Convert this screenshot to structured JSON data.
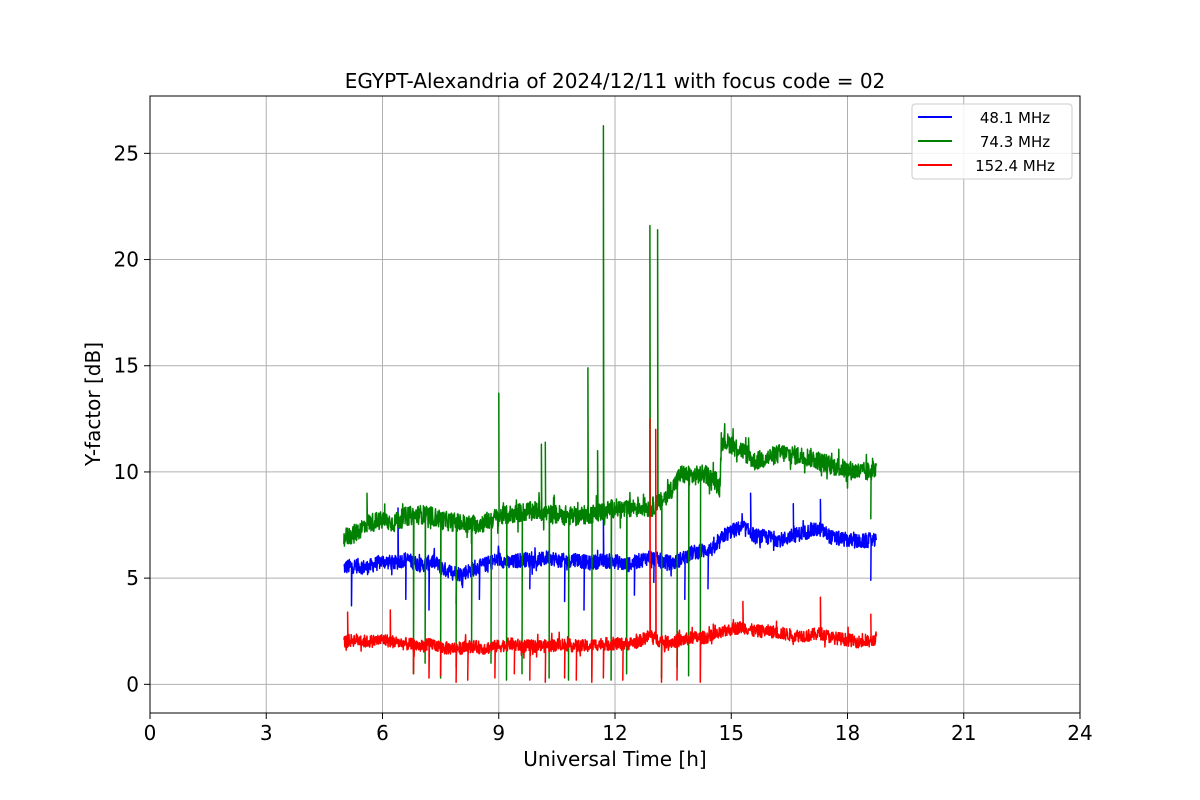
{
  "chart_data": {
    "type": "line",
    "title": "EGYPT-Alexandria of 2024/12/11 with focus code = 02",
    "xlabel": "Universal Time [h]",
    "ylabel": "Y-factor [dB]",
    "xlim": [
      0,
      24
    ],
    "ylim": [
      -1.35,
      27.7
    ],
    "xticks": [
      0,
      3,
      6,
      9,
      12,
      15,
      18,
      21,
      24
    ],
    "xtick_labels": [
      "0",
      "3",
      "6",
      "9",
      "12",
      "15",
      "18",
      "21",
      "24"
    ],
    "yticks": [
      0,
      5,
      10,
      15,
      20,
      25
    ],
    "ytick_labels": [
      "0",
      "5",
      "10",
      "15",
      "20",
      "25"
    ],
    "grid": true,
    "legend_position": "top-right",
    "series": [
      {
        "name": "48.1 MHz",
        "color": "#0000ff",
        "segments": [
          [
            5.0,
            5.5
          ],
          [
            5.3,
            5.6
          ],
          [
            5.6,
            5.5
          ],
          [
            6.0,
            5.8
          ],
          [
            6.3,
            5.7
          ],
          [
            6.6,
            5.9
          ],
          [
            7.0,
            5.6
          ],
          [
            7.3,
            5.8
          ],
          [
            7.6,
            5.4
          ],
          [
            8.0,
            5.2
          ],
          [
            8.3,
            5.4
          ],
          [
            8.6,
            5.6
          ],
          [
            9.0,
            5.9
          ],
          [
            9.3,
            5.7
          ],
          [
            9.6,
            5.9
          ],
          [
            10.0,
            5.8
          ],
          [
            10.3,
            6.0
          ],
          [
            10.6,
            5.8
          ],
          [
            11.0,
            5.9
          ],
          [
            11.3,
            5.7
          ],
          [
            11.6,
            5.8
          ],
          [
            12.0,
            5.8
          ],
          [
            12.3,
            5.6
          ],
          [
            12.6,
            5.8
          ],
          [
            12.9,
            6.0
          ],
          [
            13.2,
            5.8
          ],
          [
            13.5,
            5.7
          ],
          [
            13.8,
            6.0
          ],
          [
            14.0,
            6.2
          ],
          [
            14.3,
            6.3
          ],
          [
            14.6,
            6.4
          ],
          [
            14.8,
            7.0
          ],
          [
            15.0,
            7.2
          ],
          [
            15.3,
            7.4
          ],
          [
            15.6,
            7.0
          ],
          [
            16.0,
            6.9
          ],
          [
            16.3,
            6.8
          ],
          [
            16.6,
            7.0
          ],
          [
            17.0,
            7.2
          ],
          [
            17.3,
            7.3
          ],
          [
            17.6,
            6.9
          ],
          [
            18.0,
            6.8
          ],
          [
            18.3,
            6.7
          ],
          [
            18.6,
            6.8
          ],
          [
            18.75,
            6.7
          ]
        ],
        "spikes": [
          [
            5.2,
            3.7
          ],
          [
            6.4,
            8.3
          ],
          [
            6.6,
            4.0
          ],
          [
            7.2,
            3.5
          ],
          [
            7.9,
            3.8
          ],
          [
            8.5,
            4.0
          ],
          [
            9.8,
            4.5
          ],
          [
            10.7,
            3.9
          ],
          [
            11.2,
            3.5
          ],
          [
            11.7,
            7.9
          ],
          [
            12.5,
            4.2
          ],
          [
            13.0,
            4.8
          ],
          [
            13.8,
            4.0
          ],
          [
            14.4,
            4.5
          ],
          [
            15.5,
            9.0
          ],
          [
            16.6,
            8.5
          ],
          [
            17.3,
            8.7
          ],
          [
            18.6,
            4.9
          ]
        ],
        "noise": 0.35
      },
      {
        "name": "74.3 MHz",
        "color": "#008000",
        "segments": [
          [
            5.0,
            6.9
          ],
          [
            5.3,
            7.1
          ],
          [
            5.6,
            7.6
          ],
          [
            6.0,
            7.7
          ],
          [
            6.3,
            7.6
          ],
          [
            6.6,
            7.9
          ],
          [
            7.0,
            8.0
          ],
          [
            7.3,
            7.9
          ],
          [
            7.6,
            7.7
          ],
          [
            8.0,
            7.6
          ],
          [
            8.3,
            7.5
          ],
          [
            8.6,
            7.6
          ],
          [
            9.0,
            7.9
          ],
          [
            9.3,
            8.0
          ],
          [
            9.6,
            8.1
          ],
          [
            10.0,
            8.2
          ],
          [
            10.3,
            8.0
          ],
          [
            10.6,
            8.0
          ],
          [
            11.0,
            7.9
          ],
          [
            11.3,
            8.0
          ],
          [
            11.6,
            8.1
          ],
          [
            12.0,
            8.3
          ],
          [
            12.3,
            8.2
          ],
          [
            12.6,
            8.4
          ],
          [
            12.9,
            8.3
          ],
          [
            13.2,
            8.6
          ],
          [
            13.5,
            9.3
          ],
          [
            13.7,
            9.9
          ],
          [
            14.0,
            9.8
          ],
          [
            14.3,
            9.9
          ],
          [
            14.6,
            9.6
          ],
          [
            14.7,
            9.2
          ],
          [
            14.75,
            11.5
          ],
          [
            15.0,
            11.3
          ],
          [
            15.3,
            11.0
          ],
          [
            15.6,
            10.5
          ],
          [
            16.0,
            10.7
          ],
          [
            16.3,
            10.9
          ],
          [
            16.6,
            10.8
          ],
          [
            17.0,
            10.7
          ],
          [
            17.3,
            10.5
          ],
          [
            17.6,
            10.3
          ],
          [
            18.0,
            10.1
          ],
          [
            18.3,
            10.0
          ],
          [
            18.6,
            10.0
          ],
          [
            18.75,
            10.3
          ]
        ],
        "spikes": [
          [
            5.6,
            9.0
          ],
          [
            6.8,
            0.5
          ],
          [
            7.1,
            1.0
          ],
          [
            7.5,
            0.3
          ],
          [
            7.9,
            0.8
          ],
          [
            8.3,
            2.0
          ],
          [
            8.8,
            1.0
          ],
          [
            9.0,
            13.7
          ],
          [
            9.2,
            0.2
          ],
          [
            9.6,
            0.5
          ],
          [
            10.1,
            11.3
          ],
          [
            10.2,
            11.4
          ],
          [
            10.3,
            0.3
          ],
          [
            10.8,
            0.2
          ],
          [
            11.3,
            14.9
          ],
          [
            11.4,
            0.3
          ],
          [
            11.55,
            11.0
          ],
          [
            11.7,
            26.3
          ],
          [
            11.9,
            0.2
          ],
          [
            12.3,
            0.5
          ],
          [
            12.9,
            21.6
          ],
          [
            13.1,
            21.4
          ],
          [
            13.2,
            0.3
          ],
          [
            13.6,
            0.8
          ],
          [
            13.9,
            0.4
          ],
          [
            14.2,
            0.2
          ],
          [
            18.6,
            7.8
          ]
        ],
        "noise": 0.45
      },
      {
        "name": "152.4 MHz",
        "color": "#ff0000",
        "segments": [
          [
            5.0,
            2.0
          ],
          [
            5.3,
            2.1
          ],
          [
            5.6,
            2.0
          ],
          [
            6.0,
            2.1
          ],
          [
            6.3,
            2.0
          ],
          [
            6.6,
            1.9
          ],
          [
            7.0,
            1.8
          ],
          [
            7.3,
            1.9
          ],
          [
            7.6,
            1.7
          ],
          [
            8.0,
            1.7
          ],
          [
            8.3,
            1.8
          ],
          [
            8.6,
            1.7
          ],
          [
            9.0,
            1.8
          ],
          [
            9.3,
            1.9
          ],
          [
            9.6,
            1.8
          ],
          [
            10.0,
            1.8
          ],
          [
            10.3,
            1.8
          ],
          [
            10.6,
            1.9
          ],
          [
            11.0,
            1.8
          ],
          [
            11.3,
            1.8
          ],
          [
            11.6,
            1.9
          ],
          [
            12.0,
            1.9
          ],
          [
            12.3,
            1.9
          ],
          [
            12.6,
            2.0
          ],
          [
            12.9,
            2.3
          ],
          [
            13.2,
            2.0
          ],
          [
            13.5,
            2.0
          ],
          [
            13.8,
            2.1
          ],
          [
            14.0,
            2.2
          ],
          [
            14.3,
            2.2
          ],
          [
            14.6,
            2.3
          ],
          [
            15.0,
            2.6
          ],
          [
            15.3,
            2.7
          ],
          [
            15.6,
            2.5
          ],
          [
            16.0,
            2.5
          ],
          [
            16.3,
            2.4
          ],
          [
            16.6,
            2.3
          ],
          [
            17.0,
            2.3
          ],
          [
            17.3,
            2.4
          ],
          [
            17.6,
            2.2
          ],
          [
            18.0,
            2.1
          ],
          [
            18.3,
            2.0
          ],
          [
            18.6,
            2.0
          ],
          [
            18.75,
            2.2
          ]
        ],
        "spikes": [
          [
            5.1,
            3.4
          ],
          [
            6.2,
            3.5
          ],
          [
            6.8,
            0.5
          ],
          [
            7.2,
            0.3
          ],
          [
            7.5,
            0.4
          ],
          [
            7.9,
            0.1
          ],
          [
            8.2,
            0.2
          ],
          [
            8.9,
            0.3
          ],
          [
            9.4,
            0.5
          ],
          [
            9.8,
            0.2
          ],
          [
            10.2,
            0.1
          ],
          [
            10.7,
            0.3
          ],
          [
            11.0,
            0.2
          ],
          [
            11.4,
            0.1
          ],
          [
            11.7,
            0.3
          ],
          [
            12.2,
            0.2
          ],
          [
            12.9,
            12.5
          ],
          [
            13.05,
            12.0
          ],
          [
            13.2,
            0.1
          ],
          [
            13.6,
            0.2
          ],
          [
            14.2,
            0.1
          ],
          [
            15.3,
            3.9
          ],
          [
            17.3,
            4.1
          ],
          [
            18.6,
            3.3
          ]
        ],
        "noise": 0.3
      }
    ]
  }
}
